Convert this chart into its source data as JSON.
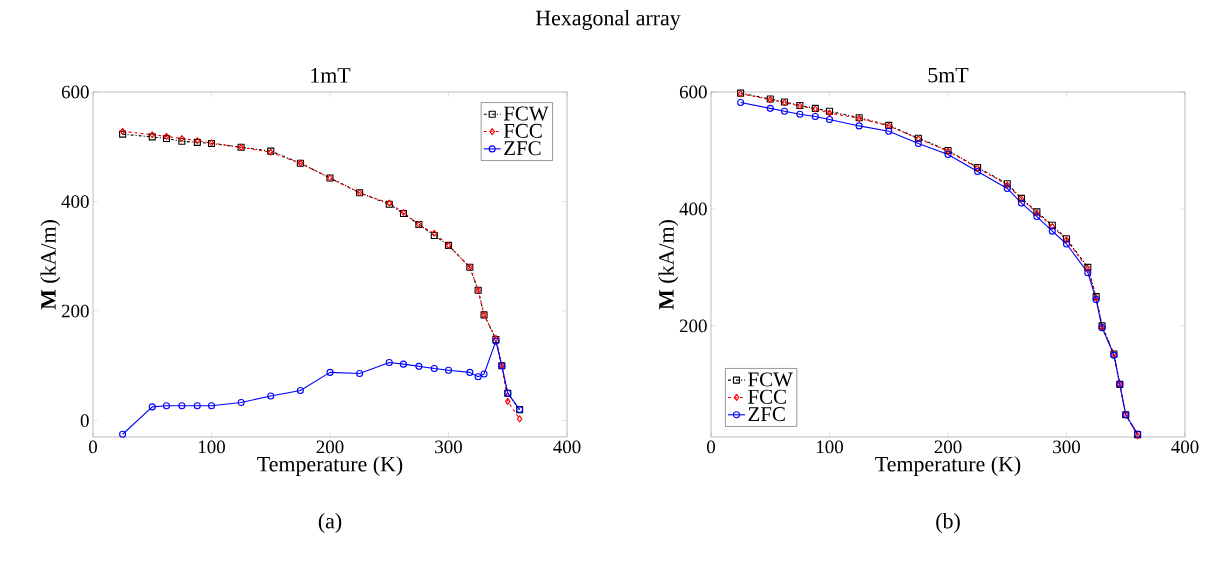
{
  "chart_data": [
    {
      "type": "line",
      "title": "1mT",
      "xlabel": "Temperature (K)",
      "ylabel": "**M** (kA/m)",
      "annotations": [
        "Hexagonal array",
        "(a)"
      ],
      "x": [
        25,
        50,
        62,
        75,
        88,
        100,
        125,
        150,
        175,
        200,
        225,
        250,
        262,
        275,
        288,
        300,
        318,
        325,
        330,
        340,
        345,
        350,
        360
      ],
      "series": [
        {
          "name": "FCW",
          "color": "#000000",
          "marker": "square",
          "line_style": "dashed",
          "values": [
            523,
            518,
            515,
            510,
            508,
            506,
            499,
            492,
            470,
            443,
            416,
            395,
            378,
            358,
            338,
            320,
            280,
            238,
            193,
            148,
            100,
            50,
            20
          ]
        },
        {
          "name": "FCC",
          "color": "#ff0000",
          "marker": "diamond",
          "line_style": "dashed",
          "values": [
            528,
            522,
            519,
            515,
            511,
            507,
            499,
            490,
            470,
            443,
            416,
            397,
            380,
            358,
            342,
            320,
            280,
            238,
            193,
            150,
            100,
            35,
            3
          ]
        },
        {
          "name": "ZFC",
          "color": "#0000ff",
          "marker": "circle",
          "line_style": "solid",
          "values": [
            -25,
            25,
            27,
            27,
            27,
            27,
            33,
            45,
            55,
            88,
            86,
            106,
            103,
            99,
            95,
            92,
            88,
            80,
            85,
            145,
            100,
            50,
            20
          ]
        }
      ],
      "xlim": [
        0,
        400
      ],
      "ylim": [
        -30,
        600
      ],
      "xticks": [
        0,
        100,
        200,
        300,
        400
      ],
      "yticks": [
        0,
        200,
        400,
        600
      ],
      "legend": "top right"
    },
    {
      "type": "line",
      "title": "5mT",
      "xlabel": "Temperature (K)",
      "ylabel": "**M** (kA/m)",
      "annotations": [
        "(b)"
      ],
      "x": [
        25,
        50,
        62,
        75,
        88,
        100,
        125,
        150,
        175,
        200,
        225,
        250,
        262,
        275,
        288,
        300,
        318,
        325,
        330,
        340,
        345,
        350,
        360
      ],
      "series": [
        {
          "name": "FCW",
          "color": "#000000",
          "marker": "square",
          "line_style": "dashed",
          "values": [
            598,
            588,
            583,
            577,
            572,
            567,
            556,
            543,
            521,
            500,
            471,
            443,
            418,
            395,
            372,
            349,
            300,
            250,
            200,
            152,
            100,
            48,
            14
          ]
        },
        {
          "name": "FCC",
          "color": "#ff0000",
          "marker": "diamond",
          "line_style": "dashed",
          "values": [
            597,
            587,
            582,
            576,
            571,
            564,
            555,
            542,
            520,
            499,
            470,
            441,
            417,
            393,
            370,
            347,
            298,
            248,
            198,
            152,
            100,
            48,
            12
          ]
        },
        {
          "name": "ZFC",
          "color": "#0000ff",
          "marker": "circle",
          "line_style": "solid",
          "values": [
            582,
            572,
            567,
            562,
            558,
            553,
            542,
            533,
            512,
            493,
            464,
            435,
            410,
            387,
            362,
            340,
            291,
            245,
            197,
            150,
            100,
            48,
            15
          ]
        }
      ],
      "xlim": [
        0,
        400
      ],
      "ylim": [
        10,
        600
      ],
      "xticks": [
        0,
        100,
        200,
        300,
        400
      ],
      "yticks": [
        200,
        400,
        600
      ],
      "legend": "bottom left"
    }
  ]
}
